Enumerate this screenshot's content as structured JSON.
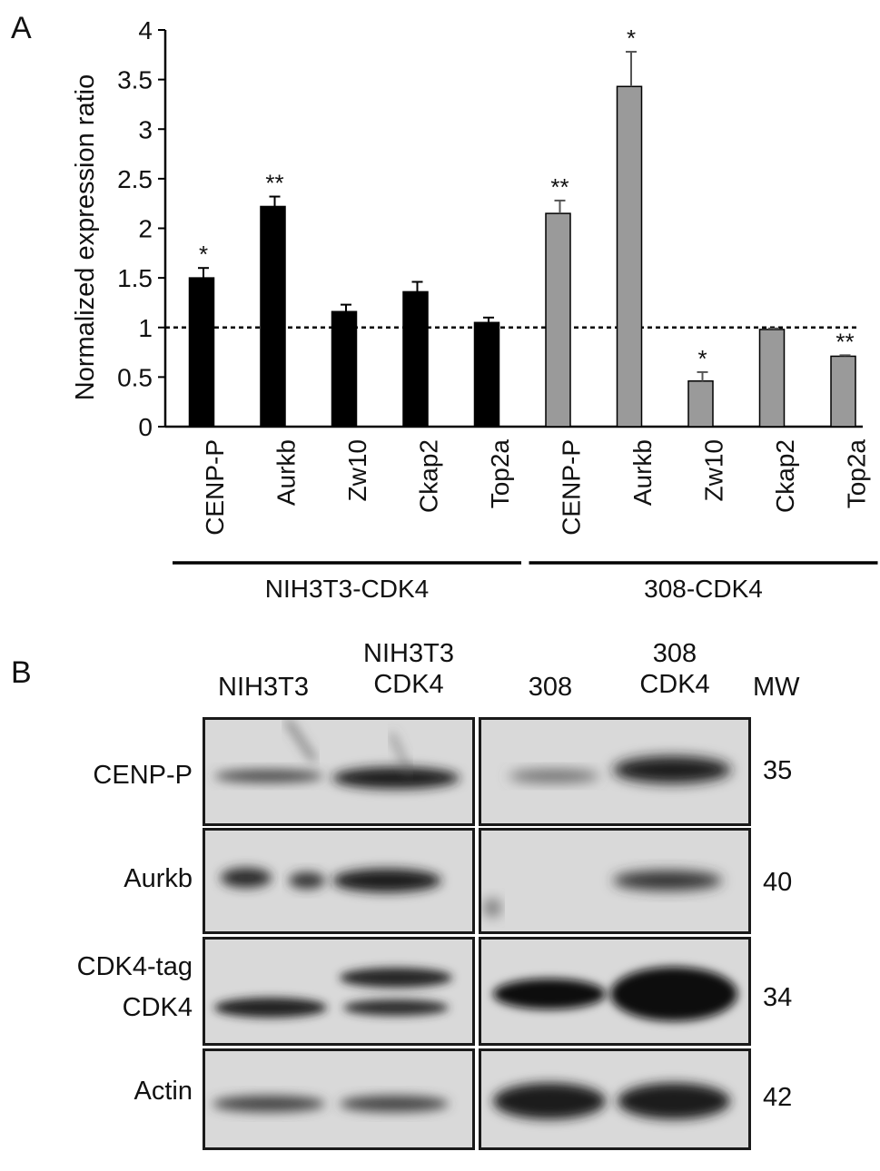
{
  "panel_a_label": "A",
  "panel_b_label": "B",
  "chart_data": {
    "type": "bar",
    "ylabel": "Normalized expression ratio",
    "xlabel": "",
    "ylim": [
      0,
      4
    ],
    "yticks": [
      "0",
      "0.5",
      "1",
      "1.5",
      "2",
      "2.5",
      "3",
      "3.5",
      "4"
    ],
    "reference_line": 1,
    "groups": [
      {
        "name": "NIH3T3-CDK4",
        "color": "#000000",
        "categories": [
          "CENP-P",
          "Aurkb",
          "Zw10",
          "Ckap2",
          "Top2a"
        ],
        "values": [
          1.5,
          2.22,
          1.16,
          1.36,
          1.05
        ],
        "errors": [
          0.1,
          0.1,
          0.07,
          0.1,
          0.05
        ],
        "significance": [
          "*",
          "**",
          "",
          "",
          ""
        ]
      },
      {
        "name": "308-CDK4",
        "color": "#9a9a9a",
        "categories": [
          "CENP-P",
          "Aurkb",
          "Zw10",
          "Ckap2",
          "Top2a"
        ],
        "values": [
          2.15,
          3.43,
          0.46,
          0.98,
          0.71
        ],
        "errors": [
          0.13,
          0.35,
          0.09,
          0.01,
          0.01
        ],
        "significance": [
          "**",
          "*",
          "*",
          "",
          "**"
        ]
      }
    ]
  },
  "western_blot": {
    "lanes_left": [
      "NIH3T3",
      "NIH3T3\nCDK4"
    ],
    "lanes_right": [
      "308",
      "308\nCDK4"
    ],
    "mw_header": "MW",
    "rows": [
      {
        "labels": [
          "CENP-P"
        ],
        "mw": "35"
      },
      {
        "labels": [
          "Aurkb"
        ],
        "mw": "40"
      },
      {
        "labels": [
          "CDK4-tag",
          "CDK4"
        ],
        "mw": "34"
      },
      {
        "labels": [
          "Actin"
        ],
        "mw": "42"
      }
    ]
  }
}
